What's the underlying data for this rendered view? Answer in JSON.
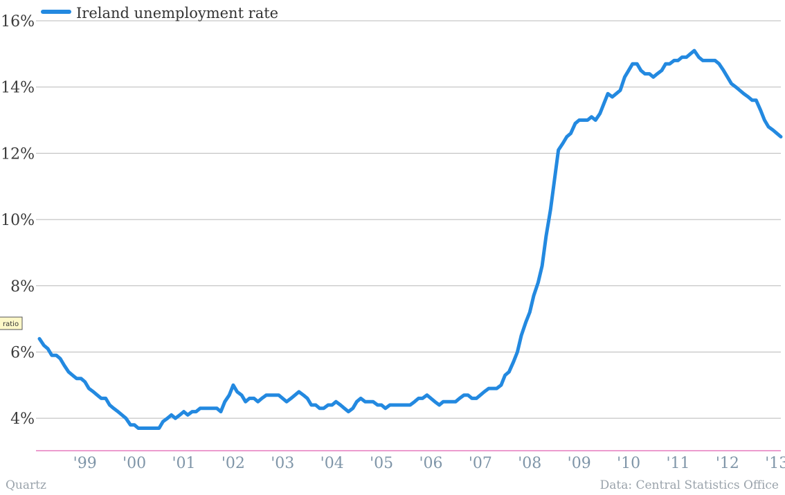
{
  "chart_data": {
    "type": "line",
    "title": "",
    "xlabel": "",
    "ylabel": "",
    "ylim": [
      3,
      16
    ],
    "y_ticks": [
      {
        "value": 4,
        "label": "4%"
      },
      {
        "value": 6,
        "label": "6%"
      },
      {
        "value": 8,
        "label": "8%"
      },
      {
        "value": 10,
        "label": "10%"
      },
      {
        "value": 12,
        "label": "12%"
      },
      {
        "value": 14,
        "label": "14%"
      },
      {
        "value": 16,
        "label": "16%"
      }
    ],
    "x_ticks": [
      {
        "value": 1999,
        "label": "'99"
      },
      {
        "value": 2000,
        "label": "'00"
      },
      {
        "value": 2001,
        "label": "'01"
      },
      {
        "value": 2002,
        "label": "'02"
      },
      {
        "value": 2003,
        "label": "'03"
      },
      {
        "value": 2004,
        "label": "'04"
      },
      {
        "value": 2005,
        "label": "'05"
      },
      {
        "value": 2006,
        "label": "'06"
      },
      {
        "value": 2007,
        "label": "'07"
      },
      {
        "value": 2008,
        "label": "'08"
      },
      {
        "value": 2009,
        "label": "'09"
      },
      {
        "value": 2010,
        "label": "'10"
      },
      {
        "value": 2011,
        "label": "'11"
      },
      {
        "value": 2012,
        "label": "'12"
      },
      {
        "value": 2013,
        "label": "'13"
      }
    ],
    "grid": true,
    "legend_position": "top-left",
    "series": [
      {
        "name": "Ireland unemployment rate",
        "color": "#2389e0",
        "points": [
          [
            1998.58,
            6.4
          ],
          [
            1998.67,
            6.2
          ],
          [
            1998.75,
            6.1
          ],
          [
            1998.83,
            5.9
          ],
          [
            1998.92,
            5.9
          ],
          [
            1999.0,
            5.8
          ],
          [
            1999.08,
            5.6
          ],
          [
            1999.17,
            5.4
          ],
          [
            1999.25,
            5.3
          ],
          [
            1999.33,
            5.2
          ],
          [
            1999.42,
            5.2
          ],
          [
            1999.5,
            5.1
          ],
          [
            1999.58,
            4.9
          ],
          [
            1999.67,
            4.8
          ],
          [
            1999.75,
            4.7
          ],
          [
            1999.83,
            4.6
          ],
          [
            1999.92,
            4.6
          ],
          [
            2000.0,
            4.4
          ],
          [
            2000.08,
            4.3
          ],
          [
            2000.17,
            4.2
          ],
          [
            2000.25,
            4.1
          ],
          [
            2000.33,
            4.0
          ],
          [
            2000.42,
            3.8
          ],
          [
            2000.5,
            3.8
          ],
          [
            2000.58,
            3.7
          ],
          [
            2000.67,
            3.7
          ],
          [
            2000.75,
            3.7
          ],
          [
            2000.83,
            3.7
          ],
          [
            2000.92,
            3.7
          ],
          [
            2001.0,
            3.7
          ],
          [
            2001.08,
            3.9
          ],
          [
            2001.17,
            4.0
          ],
          [
            2001.25,
            4.1
          ],
          [
            2001.33,
            4.0
          ],
          [
            2001.42,
            4.1
          ],
          [
            2001.5,
            4.2
          ],
          [
            2001.58,
            4.1
          ],
          [
            2001.67,
            4.2
          ],
          [
            2001.75,
            4.2
          ],
          [
            2001.83,
            4.3
          ],
          [
            2001.92,
            4.3
          ],
          [
            2002.0,
            4.3
          ],
          [
            2002.08,
            4.3
          ],
          [
            2002.17,
            4.3
          ],
          [
            2002.25,
            4.2
          ],
          [
            2002.33,
            4.5
          ],
          [
            2002.42,
            4.7
          ],
          [
            2002.5,
            5.0
          ],
          [
            2002.58,
            4.8
          ],
          [
            2002.67,
            4.7
          ],
          [
            2002.75,
            4.5
          ],
          [
            2002.83,
            4.6
          ],
          [
            2002.92,
            4.6
          ],
          [
            2003.0,
            4.5
          ],
          [
            2003.08,
            4.6
          ],
          [
            2003.17,
            4.7
          ],
          [
            2003.25,
            4.7
          ],
          [
            2003.33,
            4.7
          ],
          [
            2003.42,
            4.7
          ],
          [
            2003.5,
            4.6
          ],
          [
            2003.58,
            4.5
          ],
          [
            2003.67,
            4.6
          ],
          [
            2003.75,
            4.7
          ],
          [
            2003.83,
            4.8
          ],
          [
            2003.92,
            4.7
          ],
          [
            2004.0,
            4.6
          ],
          [
            2004.08,
            4.4
          ],
          [
            2004.17,
            4.4
          ],
          [
            2004.25,
            4.3
          ],
          [
            2004.33,
            4.3
          ],
          [
            2004.42,
            4.4
          ],
          [
            2004.5,
            4.4
          ],
          [
            2004.58,
            4.5
          ],
          [
            2004.67,
            4.4
          ],
          [
            2004.75,
            4.3
          ],
          [
            2004.83,
            4.2
          ],
          [
            2004.92,
            4.3
          ],
          [
            2005.0,
            4.5
          ],
          [
            2005.08,
            4.6
          ],
          [
            2005.17,
            4.5
          ],
          [
            2005.25,
            4.5
          ],
          [
            2005.33,
            4.5
          ],
          [
            2005.42,
            4.4
          ],
          [
            2005.5,
            4.4
          ],
          [
            2005.58,
            4.3
          ],
          [
            2005.67,
            4.4
          ],
          [
            2005.75,
            4.4
          ],
          [
            2005.83,
            4.4
          ],
          [
            2005.92,
            4.4
          ],
          [
            2006.0,
            4.4
          ],
          [
            2006.08,
            4.4
          ],
          [
            2006.17,
            4.5
          ],
          [
            2006.25,
            4.6
          ],
          [
            2006.33,
            4.6
          ],
          [
            2006.42,
            4.7
          ],
          [
            2006.5,
            4.6
          ],
          [
            2006.58,
            4.5
          ],
          [
            2006.67,
            4.4
          ],
          [
            2006.75,
            4.5
          ],
          [
            2006.83,
            4.5
          ],
          [
            2006.92,
            4.5
          ],
          [
            2007.0,
            4.5
          ],
          [
            2007.08,
            4.6
          ],
          [
            2007.17,
            4.7
          ],
          [
            2007.25,
            4.7
          ],
          [
            2007.33,
            4.6
          ],
          [
            2007.42,
            4.6
          ],
          [
            2007.5,
            4.7
          ],
          [
            2007.58,
            4.8
          ],
          [
            2007.67,
            4.9
          ],
          [
            2007.75,
            4.9
          ],
          [
            2007.83,
            4.9
          ],
          [
            2007.92,
            5.0
          ],
          [
            2008.0,
            5.3
          ],
          [
            2008.08,
            5.4
          ],
          [
            2008.17,
            5.7
          ],
          [
            2008.25,
            6.0
          ],
          [
            2008.33,
            6.5
          ],
          [
            2008.42,
            6.9
          ],
          [
            2008.5,
            7.2
          ],
          [
            2008.58,
            7.7
          ],
          [
            2008.67,
            8.1
          ],
          [
            2008.75,
            8.6
          ],
          [
            2008.83,
            9.5
          ],
          [
            2008.92,
            10.3
          ],
          [
            2009.0,
            11.2
          ],
          [
            2009.08,
            12.1
          ],
          [
            2009.17,
            12.3
          ],
          [
            2009.25,
            12.5
          ],
          [
            2009.33,
            12.6
          ],
          [
            2009.42,
            12.9
          ],
          [
            2009.5,
            13.0
          ],
          [
            2009.58,
            13.0
          ],
          [
            2009.67,
            13.0
          ],
          [
            2009.75,
            13.1
          ],
          [
            2009.83,
            13.0
          ],
          [
            2009.92,
            13.2
          ],
          [
            2010.0,
            13.5
          ],
          [
            2010.08,
            13.8
          ],
          [
            2010.17,
            13.7
          ],
          [
            2010.25,
            13.8
          ],
          [
            2010.33,
            13.9
          ],
          [
            2010.42,
            14.3
          ],
          [
            2010.5,
            14.5
          ],
          [
            2010.58,
            14.7
          ],
          [
            2010.67,
            14.7
          ],
          [
            2010.75,
            14.5
          ],
          [
            2010.83,
            14.4
          ],
          [
            2010.92,
            14.4
          ],
          [
            2011.0,
            14.3
          ],
          [
            2011.08,
            14.4
          ],
          [
            2011.17,
            14.5
          ],
          [
            2011.25,
            14.7
          ],
          [
            2011.33,
            14.7
          ],
          [
            2011.42,
            14.8
          ],
          [
            2011.5,
            14.8
          ],
          [
            2011.58,
            14.9
          ],
          [
            2011.67,
            14.9
          ],
          [
            2011.75,
            15.0
          ],
          [
            2011.83,
            15.1
          ],
          [
            2011.92,
            14.9
          ],
          [
            2012.0,
            14.8
          ],
          [
            2012.08,
            14.8
          ],
          [
            2012.17,
            14.8
          ],
          [
            2012.25,
            14.8
          ],
          [
            2012.33,
            14.7
          ],
          [
            2012.42,
            14.5
          ],
          [
            2012.5,
            14.3
          ],
          [
            2012.58,
            14.1
          ],
          [
            2012.67,
            14.0
          ],
          [
            2012.75,
            13.9
          ],
          [
            2012.83,
            13.8
          ],
          [
            2012.92,
            13.7
          ],
          [
            2013.0,
            13.6
          ],
          [
            2013.08,
            13.6
          ],
          [
            2013.17,
            13.3
          ],
          [
            2013.25,
            13.0
          ],
          [
            2013.33,
            12.8
          ],
          [
            2013.42,
            12.7
          ],
          [
            2013.5,
            12.6
          ],
          [
            2013.58,
            12.5
          ]
        ]
      }
    ]
  },
  "legend": {
    "label": "Ireland unemployment rate",
    "color": "#2389e0"
  },
  "footer": {
    "left": "Quartz",
    "right": "Data: Central Statistics Office"
  },
  "tag": {
    "label": "ratio"
  },
  "colors": {
    "grid": "#b8b8b8",
    "baseline": "#e060b0",
    "tag_fill": "#fdf8c8",
    "tag_stroke": "#555555"
  }
}
